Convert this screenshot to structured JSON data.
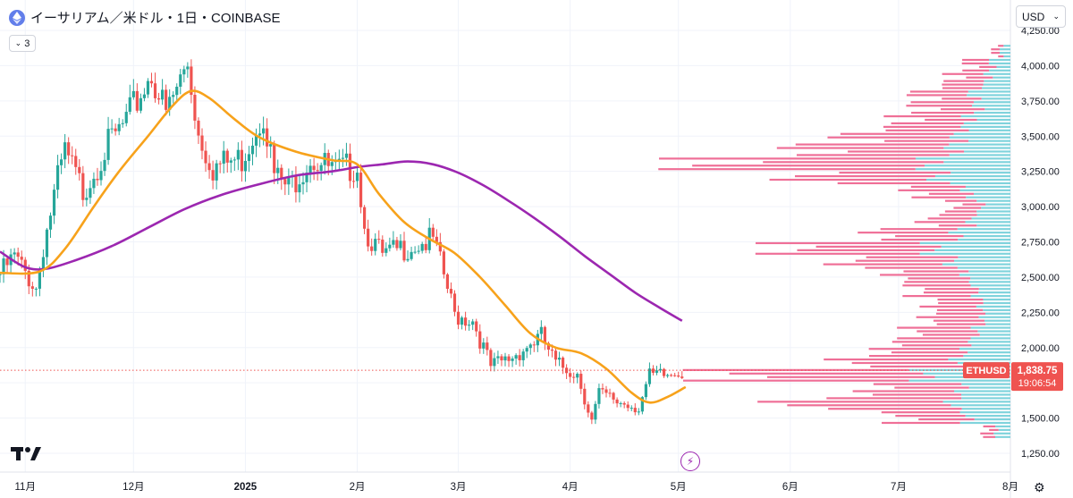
{
  "header": {
    "title": "イーサリアム／米ドル・1日・COINBASE",
    "indicators_count": "3",
    "currency": "USD"
  },
  "colors": {
    "up": "#26a69a",
    "down": "#ef5350",
    "ma_fast": "#f7a21b",
    "ma_slow": "#9c27b0",
    "vp_up": "#7fd3dc",
    "vp_down": "#ef6f97",
    "price_line": "#ef5350"
  },
  "chart_data": {
    "type": "candlestick",
    "symbol": "ETHUSD",
    "interval": "1D",
    "exchange": "COINBASE",
    "x_range": [
      "2024-10-25",
      "2025-08-01"
    ],
    "ylim": [
      1250,
      4250
    ],
    "y_ticks": [
      1250,
      1500,
      1750,
      2000,
      2250,
      2500,
      2750,
      3000,
      3250,
      3500,
      3750,
      4000,
      4250
    ],
    "y_tick_labels": [
      "1,250.00",
      "1,500.00",
      "1,750.00",
      "2,000.00",
      "2,250.00",
      "2,500.00",
      "2,750.00",
      "3,000.00",
      "3,250.00",
      "3,500.00",
      "3,750.00",
      "4,000.00",
      "4,250.00"
    ],
    "x_ticks": [
      {
        "label": "11月",
        "date": "2024-11-01"
      },
      {
        "label": "12月",
        "date": "2024-12-01"
      },
      {
        "label": "2025",
        "date": "2025-01-01"
      },
      {
        "label": "2月",
        "date": "2025-02-01"
      },
      {
        "label": "3月",
        "date": "2025-03-01"
      },
      {
        "label": "4月",
        "date": "2025-04-01"
      },
      {
        "label": "5月",
        "date": "2025-05-01"
      },
      {
        "label": "6月",
        "date": "2025-06-01"
      },
      {
        "label": "7月",
        "date": "2025-07-01"
      },
      {
        "label": "8月",
        "date": "2025-08-01"
      }
    ],
    "price_trend": [
      {
        "date": "2024-10-25",
        "close": 2520
      },
      {
        "date": "2024-10-29",
        "close": 2640
      },
      {
        "date": "2024-11-04",
        "close": 2420
      },
      {
        "date": "2024-11-06",
        "close": 2720
      },
      {
        "date": "2024-11-10",
        "close": 3190
      },
      {
        "date": "2024-11-12",
        "close": 3380
      },
      {
        "date": "2024-11-17",
        "close": 3110
      },
      {
        "date": "2024-11-23",
        "close": 3400
      },
      {
        "date": "2024-11-29",
        "close": 3600
      },
      {
        "date": "2024-12-06",
        "close": 3950
      },
      {
        "date": "2024-12-10",
        "close": 3650
      },
      {
        "date": "2024-12-16",
        "close": 4020
      },
      {
        "date": "2024-12-19",
        "close": 3520
      },
      {
        "date": "2024-12-23",
        "close": 3280
      },
      {
        "date": "2024-12-31",
        "close": 3340
      },
      {
        "date": "2025-01-06",
        "close": 3680
      },
      {
        "date": "2025-01-09",
        "close": 3220
      },
      {
        "date": "2025-01-13",
        "close": 3130
      },
      {
        "date": "2025-01-19",
        "close": 3350
      },
      {
        "date": "2025-01-26",
        "close": 3240
      },
      {
        "date": "2025-02-01",
        "close": 3300
      },
      {
        "date": "2025-02-03",
        "close": 2850
      },
      {
        "date": "2025-02-08",
        "close": 2640
      },
      {
        "date": "2025-02-15",
        "close": 2720
      },
      {
        "date": "2025-02-22",
        "close": 2760
      },
      {
        "date": "2025-02-25",
        "close": 2510
      },
      {
        "date": "2025-02-28",
        "close": 2230
      },
      {
        "date": "2025-03-05",
        "close": 2200
      },
      {
        "date": "2025-03-10",
        "close": 1860
      },
      {
        "date": "2025-03-15",
        "close": 1920
      },
      {
        "date": "2025-03-24",
        "close": 2080
      },
      {
        "date": "2025-03-28",
        "close": 1880
      },
      {
        "date": "2025-04-03",
        "close": 1820
      },
      {
        "date": "2025-04-07",
        "close": 1480
      },
      {
        "date": "2025-04-09",
        "close": 1670
      },
      {
        "date": "2025-04-14",
        "close": 1620
      },
      {
        "date": "2025-04-20",
        "close": 1580
      },
      {
        "date": "2025-04-23",
        "close": 1790
      },
      {
        "date": "2025-04-28",
        "close": 1800
      },
      {
        "date": "2025-05-02",
        "close": 1839
      }
    ],
    "ma_fast": [
      {
        "date": "2024-10-25",
        "value": 2530
      },
      {
        "date": "2024-11-05",
        "value": 2540
      },
      {
        "date": "2024-11-12",
        "value": 2700
      },
      {
        "date": "2024-11-20",
        "value": 3000
      },
      {
        "date": "2024-11-27",
        "value": 3250
      },
      {
        "date": "2024-12-05",
        "value": 3500
      },
      {
        "date": "2024-12-12",
        "value": 3720
      },
      {
        "date": "2024-12-17",
        "value": 3820
      },
      {
        "date": "2024-12-22",
        "value": 3770
      },
      {
        "date": "2024-12-29",
        "value": 3620
      },
      {
        "date": "2025-01-05",
        "value": 3490
      },
      {
        "date": "2025-01-15",
        "value": 3390
      },
      {
        "date": "2025-01-25",
        "value": 3330
      },
      {
        "date": "2025-02-01",
        "value": 3300
      },
      {
        "date": "2025-02-07",
        "value": 3090
      },
      {
        "date": "2025-02-14",
        "value": 2890
      },
      {
        "date": "2025-02-21",
        "value": 2770
      },
      {
        "date": "2025-02-28",
        "value": 2670
      },
      {
        "date": "2025-03-07",
        "value": 2500
      },
      {
        "date": "2025-03-14",
        "value": 2300
      },
      {
        "date": "2025-03-21",
        "value": 2100
      },
      {
        "date": "2025-03-28",
        "value": 2000
      },
      {
        "date": "2025-04-04",
        "value": 1960
      },
      {
        "date": "2025-04-11",
        "value": 1850
      },
      {
        "date": "2025-04-18",
        "value": 1680
      },
      {
        "date": "2025-04-23",
        "value": 1610
      },
      {
        "date": "2025-04-28",
        "value": 1650
      },
      {
        "date": "2025-05-03",
        "value": 1720
      }
    ],
    "ma_slow": [
      {
        "date": "2024-10-25",
        "value": 2680
      },
      {
        "date": "2024-11-01",
        "value": 2570
      },
      {
        "date": "2024-11-07",
        "value": 2560
      },
      {
        "date": "2024-11-15",
        "value": 2620
      },
      {
        "date": "2024-11-25",
        "value": 2720
      },
      {
        "date": "2024-12-05",
        "value": 2850
      },
      {
        "date": "2024-12-15",
        "value": 2980
      },
      {
        "date": "2024-12-25",
        "value": 3080
      },
      {
        "date": "2025-01-05",
        "value": 3160
      },
      {
        "date": "2025-01-15",
        "value": 3220
      },
      {
        "date": "2025-01-25",
        "value": 3250
      },
      {
        "date": "2025-02-01",
        "value": 3280
      },
      {
        "date": "2025-02-08",
        "value": 3300
      },
      {
        "date": "2025-02-15",
        "value": 3320
      },
      {
        "date": "2025-02-22",
        "value": 3300
      },
      {
        "date": "2025-03-01",
        "value": 3240
      },
      {
        "date": "2025-03-08",
        "value": 3150
      },
      {
        "date": "2025-03-15",
        "value": 3040
      },
      {
        "date": "2025-03-22",
        "value": 2920
      },
      {
        "date": "2025-03-29",
        "value": 2790
      },
      {
        "date": "2025-04-05",
        "value": 2650
      },
      {
        "date": "2025-04-12",
        "value": 2520
      },
      {
        "date": "2025-04-19",
        "value": 2390
      },
      {
        "date": "2025-04-26",
        "value": 2280
      },
      {
        "date": "2025-05-02",
        "value": 2190
      }
    ],
    "volume_profile": {
      "note_shown": false,
      "levels": [
        {
          "price": 4100,
          "up": 10,
          "down": 8
        },
        {
          "price": 4000,
          "up": 20,
          "down": 25
        },
        {
          "price": 3900,
          "up": 25,
          "down": 38
        },
        {
          "price": 3800,
          "up": 40,
          "down": 55
        },
        {
          "price": 3700,
          "up": 35,
          "down": 60
        },
        {
          "price": 3600,
          "up": 45,
          "down": 70
        },
        {
          "price": 3500,
          "up": 55,
          "down": 110
        },
        {
          "price": 3400,
          "up": 60,
          "down": 150
        },
        {
          "price": 3300,
          "up": 85,
          "down": 230
        },
        {
          "price": 3200,
          "up": 75,
          "down": 140
        },
        {
          "price": 3100,
          "up": 45,
          "down": 55
        },
        {
          "price": 3000,
          "up": 30,
          "down": 28
        },
        {
          "price": 2900,
          "up": 40,
          "down": 45
        },
        {
          "price": 2800,
          "up": 55,
          "down": 80
        },
        {
          "price": 2700,
          "up": 80,
          "down": 145
        },
        {
          "price": 2600,
          "up": 60,
          "down": 105
        },
        {
          "price": 2500,
          "up": 45,
          "down": 70
        },
        {
          "price": 2400,
          "up": 35,
          "down": 60
        },
        {
          "price": 2300,
          "up": 30,
          "down": 50
        },
        {
          "price": 2200,
          "up": 28,
          "down": 55
        },
        {
          "price": 2100,
          "up": 35,
          "down": 65
        },
        {
          "price": 2000,
          "up": 45,
          "down": 80
        },
        {
          "price": 1900,
          "up": 55,
          "down": 110
        },
        {
          "price": 1800,
          "up": 90,
          "down": 200
        },
        {
          "price": 1700,
          "up": 50,
          "down": 90
        },
        {
          "price": 1600,
          "up": 60,
          "down": 165
        },
        {
          "price": 1500,
          "up": 45,
          "down": 70
        },
        {
          "price": 1400,
          "up": 15,
          "down": 12
        }
      ]
    },
    "last_price": {
      "symbol_label": "ETHUSD",
      "value": 1838.75,
      "value_label": "1,838.75",
      "countdown": "19:06:54"
    }
  },
  "footer": {
    "logo": "TV",
    "settings_icon": "gear-icon",
    "flash_icon": "lightning-icon"
  }
}
